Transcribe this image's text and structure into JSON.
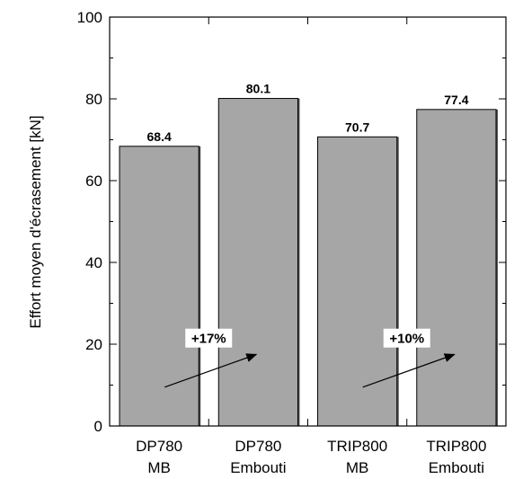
{
  "chart_data": {
    "type": "bar",
    "categories": [
      [
        "DP780",
        "MB"
      ],
      [
        "DP780",
        "Embouti"
      ],
      [
        "TRIP800",
        "MB"
      ],
      [
        "TRIP800",
        "Embouti"
      ]
    ],
    "values": [
      68.4,
      80.1,
      70.7,
      77.4
    ],
    "data_labels": [
      "68.4",
      "80.1",
      "70.7",
      "77.4"
    ],
    "title": "",
    "xlabel": "",
    "ylabel": "Effort moyen d'écrasement [kN]",
    "ylim": [
      0,
      100
    ],
    "yticks": [
      "0",
      "20",
      "40",
      "60",
      "80",
      "100"
    ],
    "grid": false,
    "bar_color": "#a6a6a6",
    "annotations": [
      {
        "text": "+17%",
        "from_category": 0,
        "to_category": 1
      },
      {
        "text": "+10%",
        "from_category": 2,
        "to_category": 3
      }
    ]
  }
}
